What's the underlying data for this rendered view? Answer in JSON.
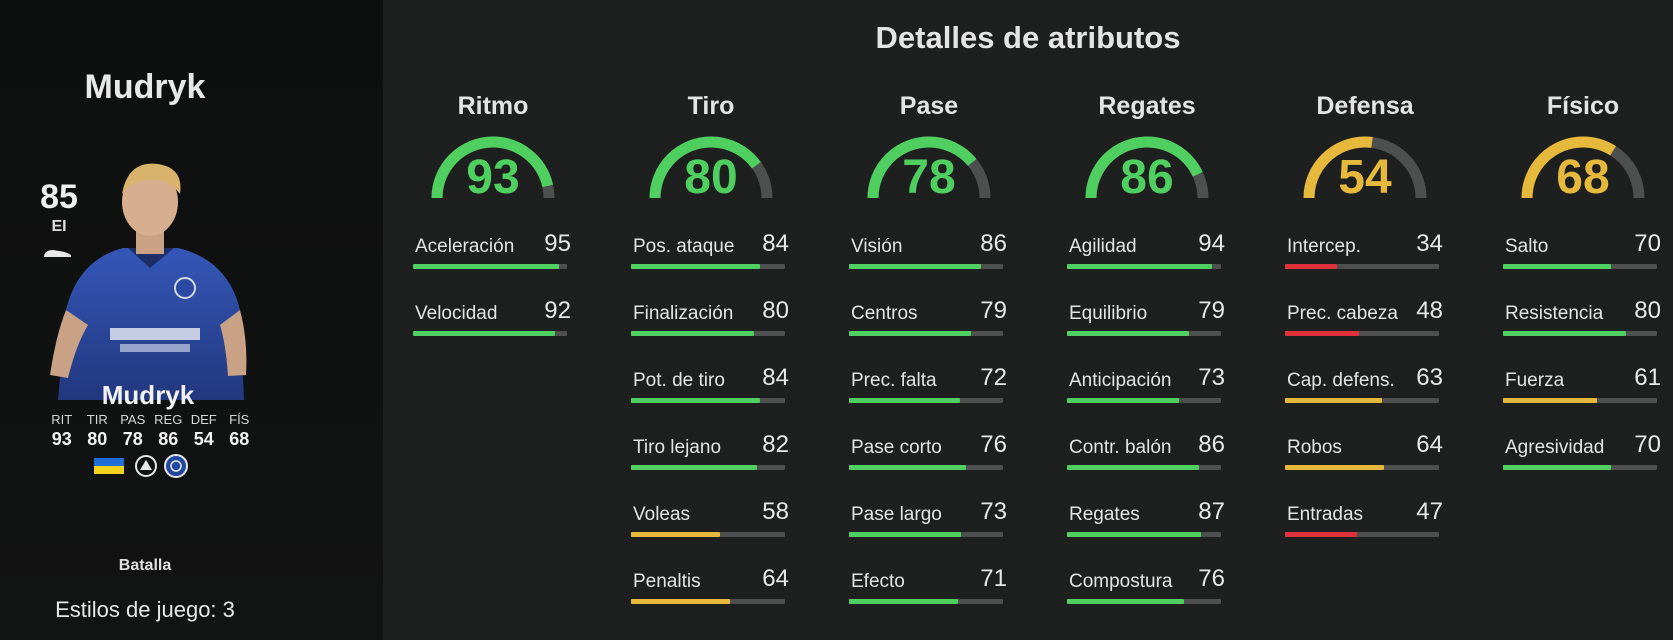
{
  "player": {
    "name": "Mudryk",
    "overall": "85",
    "position": "EI",
    "card_name": "Mudryk",
    "card_stats": [
      {
        "label": "RIT",
        "value": "93"
      },
      {
        "label": "TIR",
        "value": "80"
      },
      {
        "label": "PAS",
        "value": "78"
      },
      {
        "label": "REG",
        "value": "86"
      },
      {
        "label": "DEF",
        "value": "54"
      },
      {
        "label": "FÍS",
        "value": "68"
      }
    ],
    "icons": [
      "boot-icon",
      "ukraine-flag-icon",
      "premier-league-badge-icon",
      "chelsea-crest-icon"
    ],
    "playstyle": "Batalla",
    "playstyles_count": "Estilos de juego: 3"
  },
  "title": "Detalles de atributos",
  "colors": {
    "green": "#4fcf5f",
    "yellow": "#e6b83c",
    "red": "#e0303c",
    "track": "#4d504e"
  },
  "categories": [
    {
      "name": "Ritmo",
      "value": "93",
      "stats": [
        {
          "label": "Aceleración",
          "value": "95"
        },
        {
          "label": "Velocidad",
          "value": "92"
        }
      ]
    },
    {
      "name": "Tiro",
      "value": "80",
      "stats": [
        {
          "label": "Pos. ataque",
          "value": "84"
        },
        {
          "label": "Finalización",
          "value": "80"
        },
        {
          "label": "Pot. de tiro",
          "value": "84"
        },
        {
          "label": "Tiro lejano",
          "value": "82"
        },
        {
          "label": "Voleas",
          "value": "58"
        },
        {
          "label": "Penaltis",
          "value": "64"
        }
      ]
    },
    {
      "name": "Pase",
      "value": "78",
      "stats": [
        {
          "label": "Visión",
          "value": "86"
        },
        {
          "label": "Centros",
          "value": "79"
        },
        {
          "label": "Prec. falta",
          "value": "72"
        },
        {
          "label": "Pase corto",
          "value": "76"
        },
        {
          "label": "Pase largo",
          "value": "73"
        },
        {
          "label": "Efecto",
          "value": "71"
        }
      ]
    },
    {
      "name": "Regates",
      "value": "86",
      "stats": [
        {
          "label": "Agilidad",
          "value": "94"
        },
        {
          "label": "Equilibrio",
          "value": "79"
        },
        {
          "label": "Anticipación",
          "value": "73"
        },
        {
          "label": "Contr. balón",
          "value": "86"
        },
        {
          "label": "Regates",
          "value": "87"
        },
        {
          "label": "Compostura",
          "value": "76"
        }
      ]
    },
    {
      "name": "Defensa",
      "value": "54",
      "stats": [
        {
          "label": "Intercep.",
          "value": "34"
        },
        {
          "label": "Prec. cabeza",
          "value": "48"
        },
        {
          "label": "Cap. defens.",
          "value": "63"
        },
        {
          "label": "Robos",
          "value": "64"
        },
        {
          "label": "Entradas",
          "value": "47"
        }
      ]
    },
    {
      "name": "Físico",
      "value": "68",
      "stats": [
        {
          "label": "Salto",
          "value": "70"
        },
        {
          "label": "Resistencia",
          "value": "80"
        },
        {
          "label": "Fuerza",
          "value": "61"
        },
        {
          "label": "Agresividad",
          "value": "70"
        }
      ]
    }
  ]
}
